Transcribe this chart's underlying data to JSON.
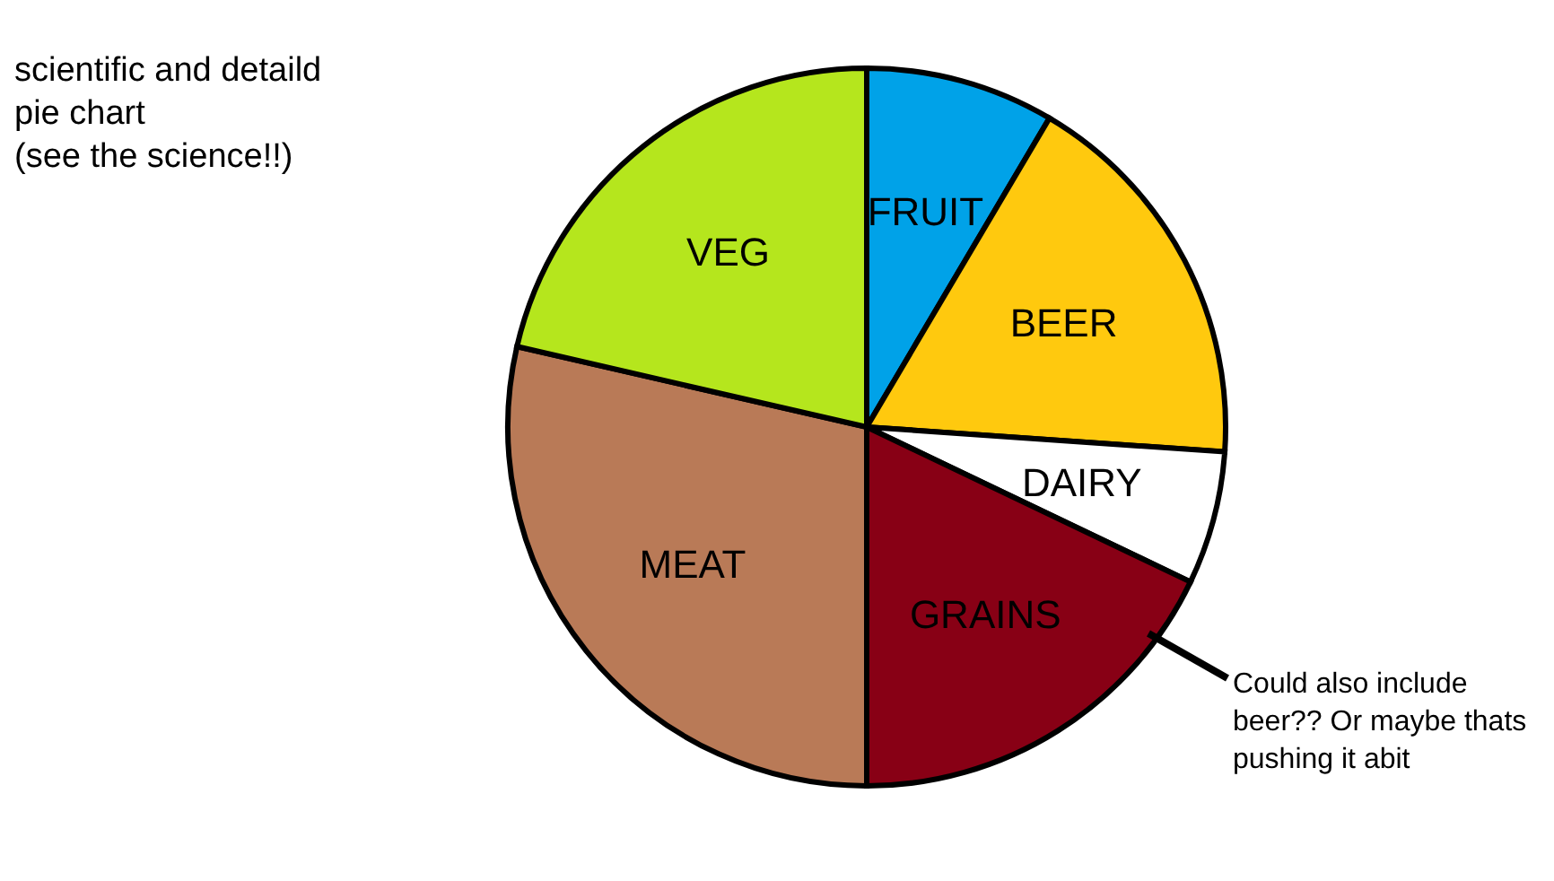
{
  "chart_data": {
    "type": "pie",
    "title": "scientific and detaild pie chart",
    "subtitle": "(see the science!!)",
    "categories": [
      "FRUIT",
      "BEER",
      "DAIRY",
      "GRAINS",
      "MEAT",
      "VEG"
    ],
    "values": [
      8.5,
      17.6,
      6,
      17.9,
      28.6,
      21.4
    ],
    "colors": [
      "#00a2e8",
      "#ffc90e",
      "#ffffff",
      "#880015",
      "#b97a57",
      "#b5e61d"
    ],
    "annotations": [
      "Could also include beer?? Or maybe thats pushing it abit"
    ]
  }
}
